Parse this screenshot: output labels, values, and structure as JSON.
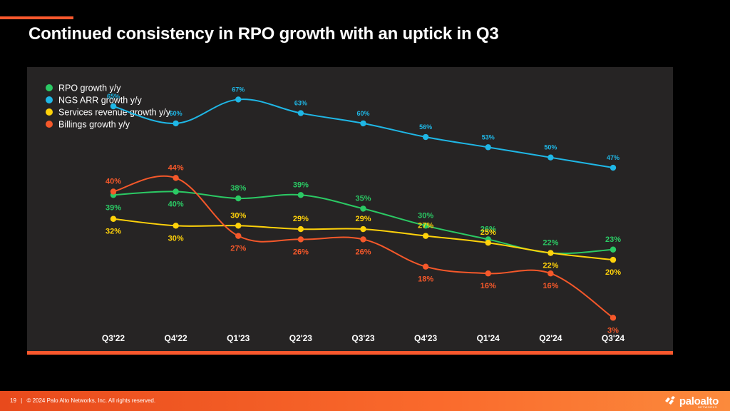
{
  "slide": {
    "title": "Continued consistency in RPO growth with an uptick in Q3",
    "page_number": "19",
    "separator": "|",
    "copyright": "© 2024 Palo Alto Networks, Inc. All rights reserved.",
    "logo_text": "paloalto",
    "logo_sub": "NETWORKS",
    "accent_color": "#fa582d"
  },
  "chart_data": {
    "type": "line",
    "title": "",
    "xlabel": "",
    "ylabel": "",
    "categories": [
      "Q3'22",
      "Q4'22",
      "Q1'23",
      "Q2'23",
      "Q3'23",
      "Q4'23",
      "Q1'24",
      "Q2'24",
      "Q3'24"
    ],
    "legend_position": "top-left",
    "grid": false,
    "series": [
      {
        "name": "RPO growth y/y",
        "color": "#2bc964",
        "values": [
          39,
          40,
          38,
          39,
          35,
          30,
          26,
          22,
          23
        ]
      },
      {
        "name": "NGS ARR growth y/y",
        "color": "#1fb7e6",
        "values": [
          65,
          60,
          67,
          63,
          60,
          56,
          53,
          50,
          47
        ]
      },
      {
        "name": "Services revenue growth y/y",
        "color": "#ffd20a",
        "values": [
          32,
          30,
          30,
          29,
          29,
          27,
          25,
          22,
          20
        ]
      },
      {
        "name": "Billings growth y/y",
        "color": "#f5582a",
        "values": [
          40,
          44,
          27,
          26,
          26,
          18,
          16,
          16,
          3
        ]
      }
    ]
  }
}
